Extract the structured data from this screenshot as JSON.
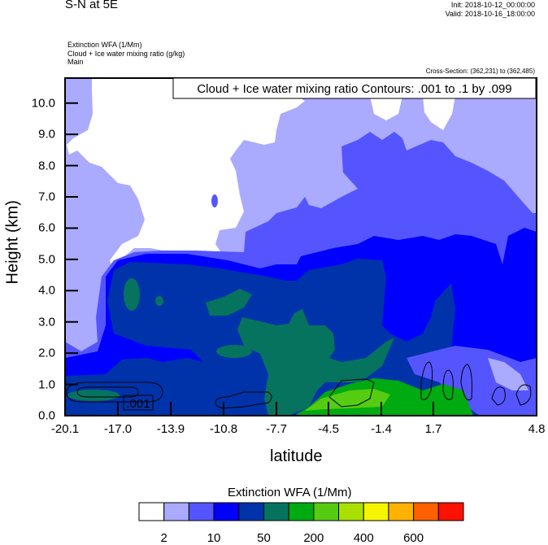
{
  "header": {
    "title": "S-N at 5E",
    "init": "Init: 2018-10-12_00:00:00",
    "valid": "Valid: 2018-10-16_18:00:00",
    "fields": [
      "Extinction WFA   (1/Mm)",
      "Cloud + Ice water mixing ratio   (g/kg)",
      "Main"
    ],
    "cross_section": "Cross-Section: (362,231) to (362,485)"
  },
  "chart_data": {
    "type": "heatmap",
    "title": "S-N at 5E",
    "xlabel": "latitude",
    "ylabel": "Height (km)",
    "xticks": [
      "-20.1",
      "-17.0",
      "-13.9",
      "-10.8",
      "-7.7",
      "-4.5",
      "-1.4",
      "1.7",
      "4.8"
    ],
    "yticks": [
      "0.0",
      "1.0",
      "2.0",
      "3.0",
      "4.0",
      "5.0",
      "6.0",
      "7.0",
      "8.0",
      "9.0",
      "10.0"
    ],
    "xlim": [
      -20.1,
      4.8
    ],
    "ylim": [
      0,
      10.8
    ],
    "contour_title": "Cloud + Ice water mixing ratio Contours: .001 to .1 by .099",
    "contour_label": ".001",
    "colorbar": {
      "title": "Extinction WFA  (1/Mm)",
      "colors": [
        "#FFFFFF",
        "#AAAAFF",
        "#5555FF",
        "#0000FF",
        "#0033AA",
        "#06735F",
        "#00AA11",
        "#55CC11",
        "#AAE000",
        "#F5F500",
        "#FFB300",
        "#FF6000",
        "#FF1100"
      ],
      "labels": [
        "2",
        "10",
        "50",
        "200",
        "400",
        "600"
      ]
    }
  }
}
